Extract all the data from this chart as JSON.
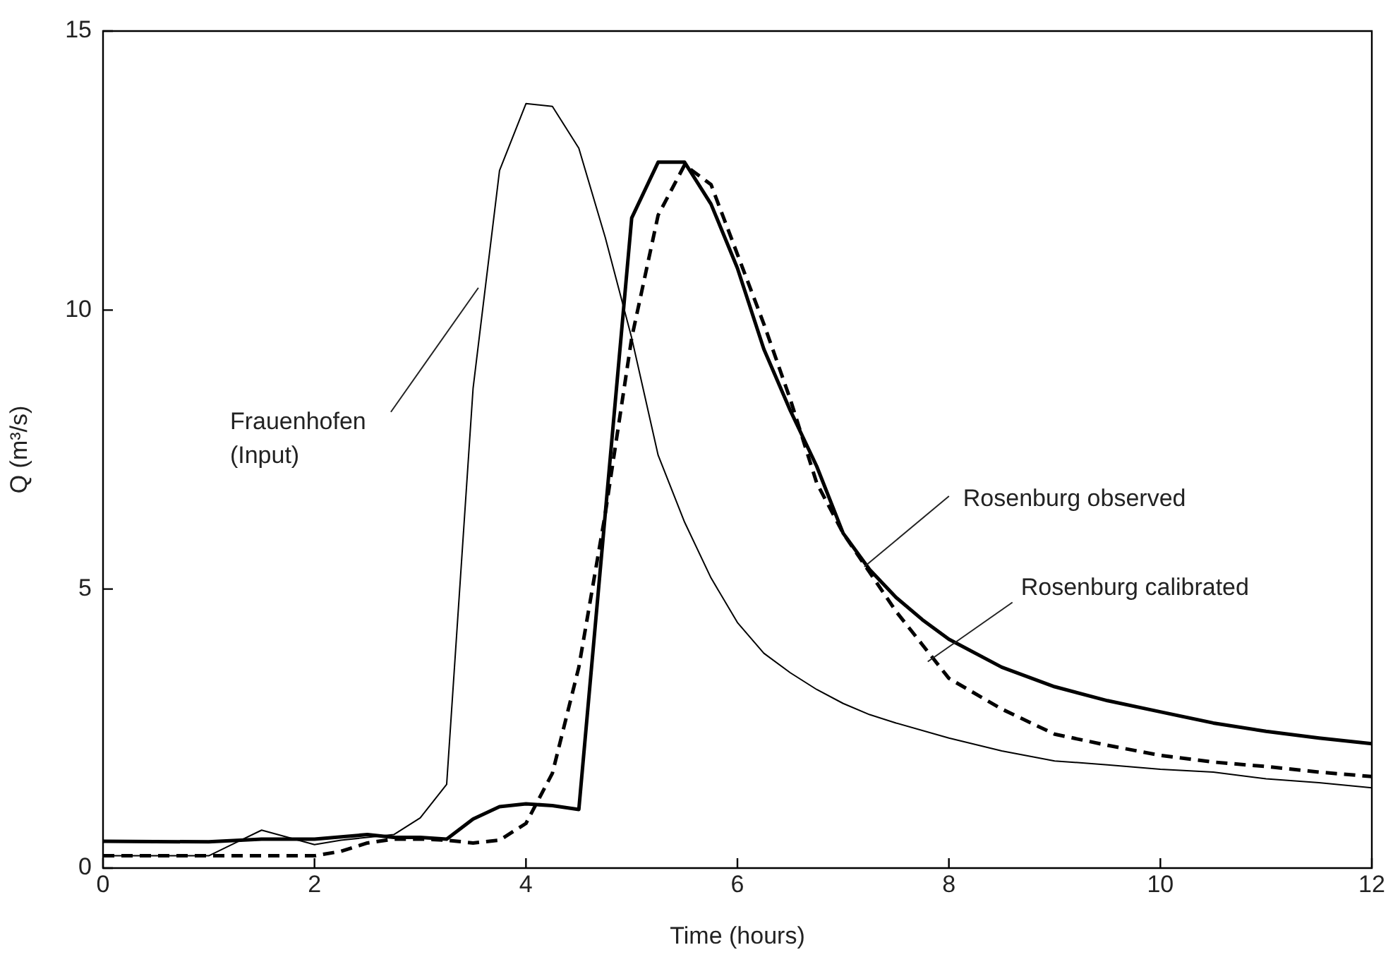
{
  "chart_data": {
    "type": "line",
    "xlabel": "Time (hours)",
    "ylabel": "Q (m³/s)",
    "xlim": [
      0,
      12
    ],
    "xticks": [
      0,
      2,
      4,
      6,
      8,
      10,
      12
    ],
    "ylim": [
      0,
      15
    ],
    "yticks": [
      0,
      5,
      10,
      15
    ],
    "legend": false,
    "marker": "none",
    "series": [
      {
        "color": "#000000",
        "line_style": "solid",
        "x": [
          0,
          0.5,
          1,
          1.25,
          1.5,
          1.75,
          2,
          2.25,
          2.5,
          2.75,
          3,
          3.25,
          3.5,
          3.75,
          4,
          4.25,
          4.5,
          4.75,
          5,
          5.25,
          5.5,
          5.75,
          6,
          6.25,
          6.5,
          6.75,
          7,
          7.25,
          7.5,
          8,
          8.5,
          9,
          9.5,
          10,
          10.5,
          11,
          11.5,
          12
        ],
        "values": [
          0.22,
          0.22,
          0.22,
          0.45,
          0.68,
          0.55,
          0.42,
          0.5,
          0.55,
          0.6,
          0.9,
          1.5,
          8.6,
          12.5,
          13.7,
          13.65,
          12.9,
          11.3,
          9.5,
          7.4,
          6.2,
          5.2,
          4.4,
          3.85,
          3.5,
          3.2,
          2.95,
          2.75,
          2.6,
          2.33,
          2.1,
          1.92,
          1.85,
          1.77,
          1.72,
          1.6,
          1.53,
          1.44
        ]
      },
      {
        "color": "#000000",
        "line_style": "solid",
        "x": [
          0,
          1,
          1.5,
          2,
          2.5,
          2.75,
          3,
          3.25,
          3.5,
          3.75,
          4,
          4.25,
          4.5,
          5,
          5.25,
          5.5,
          5.75,
          6,
          6.25,
          6.5,
          6.75,
          7,
          7.25,
          7.5,
          7.75,
          8,
          8.5,
          9,
          9.5,
          10,
          10.5,
          11,
          11.5,
          12
        ],
        "values": [
          0.48,
          0.47,
          0.52,
          0.52,
          0.6,
          0.55,
          0.55,
          0.52,
          0.88,
          1.1,
          1.15,
          1.12,
          1.05,
          11.65,
          12.65,
          12.65,
          11.9,
          10.75,
          9.3,
          8.2,
          7.2,
          6.0,
          5.35,
          4.85,
          4.45,
          4.1,
          3.6,
          3.25,
          3.0,
          2.8,
          2.6,
          2.45,
          2.33,
          2.23
        ]
      },
      {
        "color": "#000000",
        "line_style": "dashed",
        "x": [
          0,
          1,
          2,
          2.25,
          2.5,
          2.75,
          3,
          3.25,
          3.5,
          3.75,
          4,
          4.25,
          4.5,
          4.75,
          5,
          5.25,
          5.5,
          5.75,
          6,
          6.25,
          6.5,
          6.75,
          7,
          7.25,
          7.5,
          7.75,
          8,
          8.5,
          9,
          9.5,
          10,
          10.5,
          11,
          11.5,
          12
        ],
        "values": [
          0.22,
          0.22,
          0.22,
          0.3,
          0.45,
          0.52,
          0.52,
          0.5,
          0.45,
          0.5,
          0.8,
          1.7,
          3.6,
          6.35,
          9.5,
          11.7,
          12.6,
          12.25,
          11.0,
          9.75,
          8.4,
          6.9,
          6.0,
          5.3,
          4.6,
          4.0,
          3.4,
          2.85,
          2.4,
          2.2,
          2.02,
          1.9,
          1.82,
          1.72,
          1.64
        ]
      }
    ],
    "annotations": [
      {
        "text": "Frauenhofen (Input)",
        "x": 3.55,
        "y": 10.4
      },
      {
        "text": "Rosenburg observed",
        "x": 7.2,
        "y": 5.4
      },
      {
        "text": "Rosenburg calibrated",
        "x": 7.8,
        "y": 3.7
      }
    ]
  }
}
